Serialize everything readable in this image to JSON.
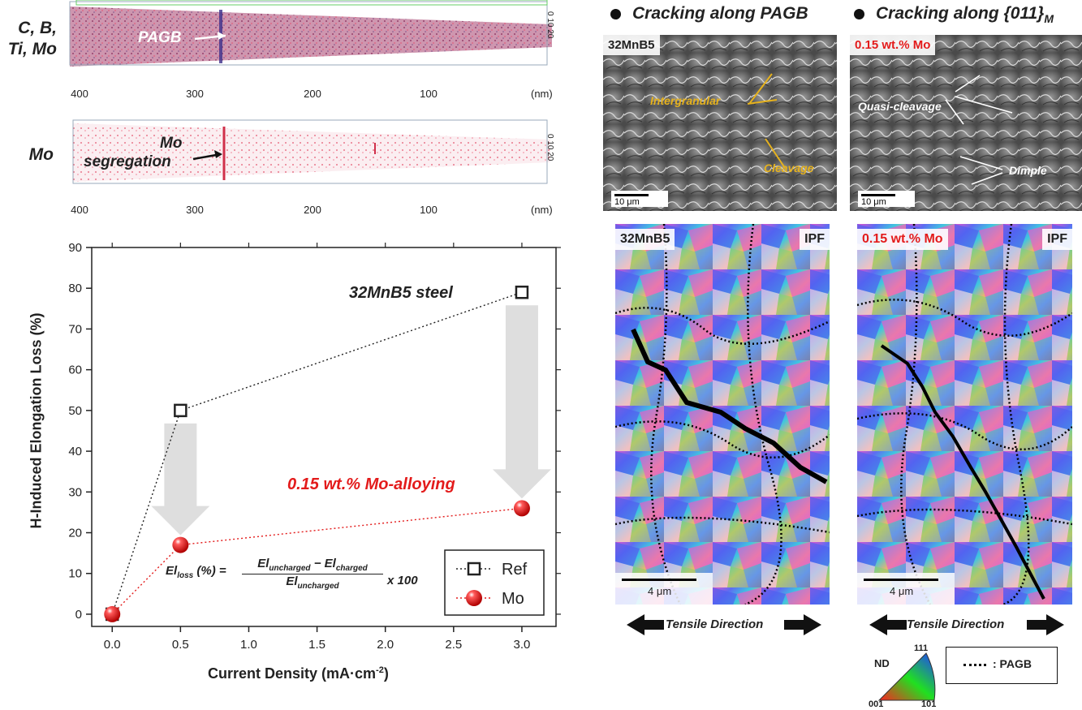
{
  "apt": {
    "row1_label": "C, B,\nTi, Mo",
    "row2_label": "Mo",
    "pagb_label": "PAGB",
    "seg_label_1": "Mo",
    "seg_label_2": "segregation",
    "ticks": [
      "400",
      "300",
      "200",
      "100"
    ],
    "unit": "(nm)",
    "side_text": "0 10 20"
  },
  "fracture": {
    "header_left": "Cracking along PAGB",
    "header_right_main": "Cracking along {011}",
    "header_right_sub": "M",
    "left_tag": "32MnB5",
    "right_tag": "0.15 wt.% Mo",
    "left_annotations": [
      "Intergranular",
      "Cleavage"
    ],
    "right_annotations": [
      "Quasi-cleavage",
      "Dimple"
    ],
    "scale": "10 μm"
  },
  "ebsd": {
    "left_tag": "32MnB5",
    "right_tag": "0.15 wt.% Mo",
    "ipf": "IPF",
    "scale": "4 μm",
    "tensile": "Tensile Direction",
    "legend_nd": "ND",
    "legend_111": "111",
    "legend_001": "001",
    "legend_101": "101",
    "pagb_legend": ": PAGB"
  },
  "chart_data": {
    "type": "scatter",
    "xlabel": "Current Density (mA·cm",
    "xlabel_sup": "-2",
    "xlabel_end": ")",
    "ylabel": "H-Induced Elongation Loss (%)",
    "x_tick_labels": [
      "0.0",
      "0.5",
      "1.0",
      "1.5",
      "2.0",
      "2.5",
      "3.0"
    ],
    "y_ticks": [
      0,
      10,
      20,
      30,
      40,
      50,
      60,
      70,
      80,
      90
    ],
    "xlim": [
      -0.15,
      3.25
    ],
    "ylim": [
      -3,
      90
    ],
    "series": [
      {
        "name": "Ref",
        "x": [
          0,
          0.5,
          3.0
        ],
        "y": [
          0,
          50,
          79
        ],
        "color": "#222222",
        "marker": "square"
      },
      {
        "name": "Mo",
        "x": [
          0,
          0.5,
          3.0
        ],
        "y": [
          0,
          17,
          26
        ],
        "color": "#e31b1b",
        "marker": "sphere"
      }
    ],
    "annotations": {
      "ref_label": "32MnB5 steel",
      "mo_label": "0.15 wt.% Mo-alloying",
      "formula_lhs": "El",
      "formula_lhs_sub": "loss",
      "formula_eq": "(%) =",
      "formula_num_a": "El",
      "formula_num_a_sub": "uncharged",
      "formula_minus": "−",
      "formula_num_b": "El",
      "formula_num_b_sub": "charged",
      "formula_den": "El",
      "formula_den_sub": "uncharged",
      "formula_mult": "x 100"
    },
    "legend_position": "bottom-right"
  }
}
